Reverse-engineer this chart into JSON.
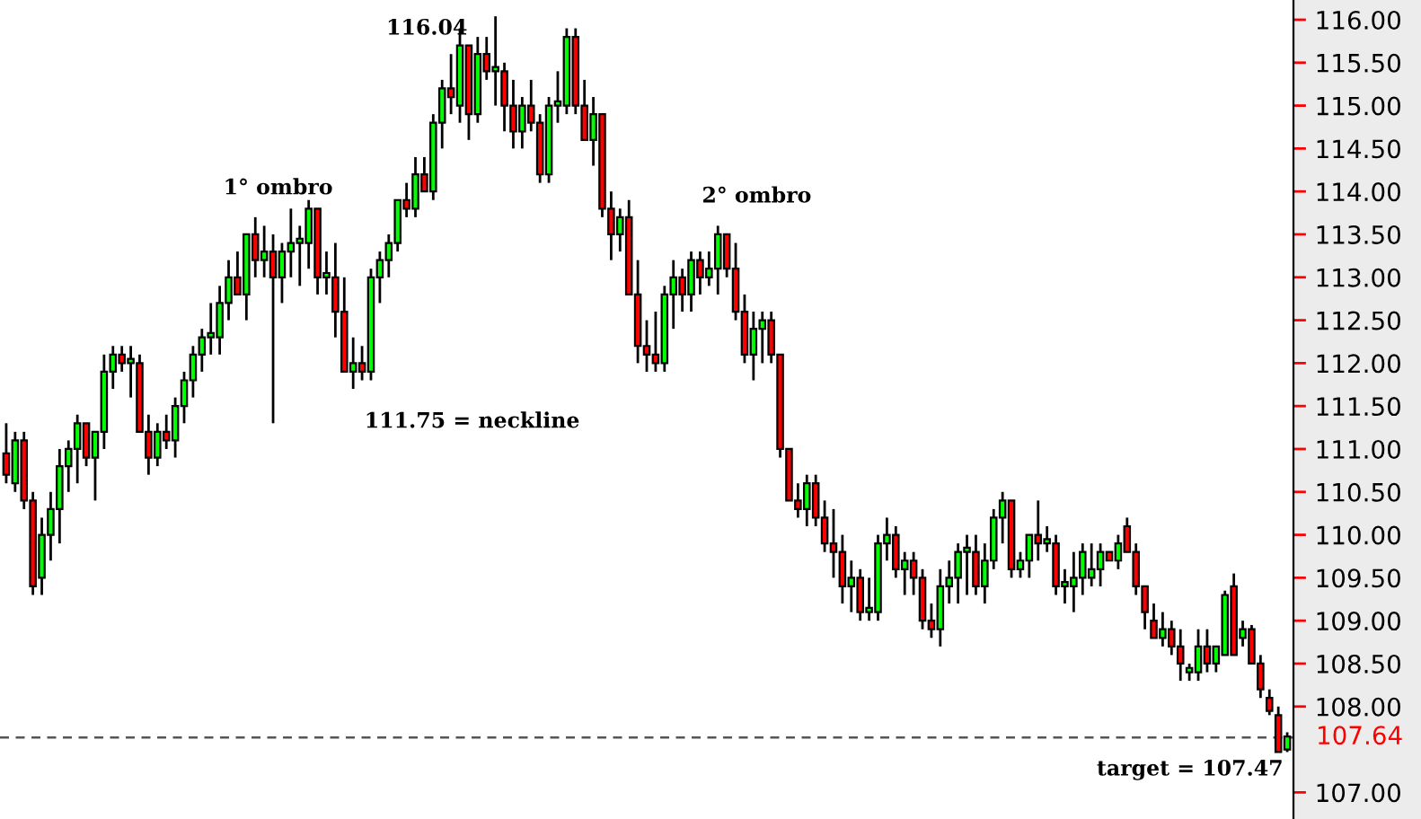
{
  "chart_data": {
    "type": "candlestick",
    "categories": [
      null,
      null,
      null,
      null,
      null,
      null,
      null,
      null,
      null,
      null,
      null,
      null,
      null,
      null,
      null,
      null,
      null,
      null,
      null,
      null,
      null,
      null,
      null,
      null,
      null,
      null,
      null,
      null,
      null,
      null,
      null,
      null,
      null,
      null,
      null,
      null,
      null,
      null,
      null,
      null,
      null,
      null,
      null,
      null,
      null,
      null,
      null,
      null,
      null,
      null,
      null,
      null,
      null,
      null,
      null,
      null,
      null,
      null,
      null,
      null,
      null,
      null,
      null,
      null,
      null,
      null,
      null,
      null,
      null,
      null,
      null,
      null,
      null,
      null,
      null,
      null,
      null,
      null,
      null,
      null,
      null,
      null,
      null,
      null,
      null,
      null,
      null,
      null,
      null,
      null,
      null,
      null,
      null,
      null,
      null,
      null,
      null,
      null,
      null,
      null,
      null,
      null,
      null,
      null,
      null,
      null,
      null,
      null,
      null,
      null,
      null,
      null,
      null,
      null,
      null,
      null,
      null,
      null,
      null,
      null,
      null,
      null,
      null,
      null,
      null,
      null,
      null,
      null,
      null,
      null,
      null,
      null,
      null,
      null,
      null,
      null,
      null,
      null,
      null,
      null,
      null,
      null,
      null,
      null,
      null
    ],
    "ohlc": [
      [
        110.95,
        111.3,
        110.6,
        110.7
      ],
      [
        110.6,
        111.2,
        110.5,
        111.1
      ],
      [
        111.1,
        111.2,
        110.3,
        110.4
      ],
      [
        110.4,
        110.5,
        109.3,
        109.4
      ],
      [
        109.5,
        110.2,
        109.3,
        110.0
      ],
      [
        110.0,
        110.5,
        109.7,
        110.3
      ],
      [
        110.3,
        111.0,
        109.9,
        110.8
      ],
      [
        110.8,
        111.1,
        110.5,
        111.0
      ],
      [
        111.0,
        111.4,
        110.6,
        111.3
      ],
      [
        111.3,
        111.3,
        110.8,
        110.9
      ],
      [
        110.9,
        111.2,
        110.4,
        111.2
      ],
      [
        111.2,
        112.1,
        111.0,
        111.9
      ],
      [
        111.9,
        112.2,
        111.7,
        112.1
      ],
      [
        112.1,
        112.2,
        111.9,
        112.0
      ],
      [
        112.0,
        112.2,
        111.6,
        112.05
      ],
      [
        112.0,
        112.1,
        111.2,
        111.2
      ],
      [
        111.2,
        111.4,
        110.7,
        110.9
      ],
      [
        110.9,
        111.3,
        110.8,
        111.2
      ],
      [
        111.2,
        111.4,
        111.0,
        111.1
      ],
      [
        111.1,
        111.6,
        110.9,
        111.5
      ],
      [
        111.5,
        111.9,
        111.3,
        111.8
      ],
      [
        111.8,
        112.2,
        111.6,
        112.1
      ],
      [
        112.1,
        112.4,
        111.9,
        112.3
      ],
      [
        112.3,
        112.7,
        112.1,
        112.35
      ],
      [
        112.3,
        112.9,
        112.1,
        112.7
      ],
      [
        112.7,
        113.2,
        112.5,
        113.0
      ],
      [
        113.0,
        113.3,
        112.8,
        112.8
      ],
      [
        112.8,
        113.5,
        112.5,
        113.5
      ],
      [
        113.5,
        113.7,
        113.0,
        113.2
      ],
      [
        113.2,
        113.6,
        113.0,
        113.3
      ],
      [
        113.3,
        113.5,
        111.3,
        113.0
      ],
      [
        113.0,
        113.4,
        112.7,
        113.3
      ],
      [
        113.3,
        113.8,
        113.0,
        113.4
      ],
      [
        113.4,
        113.6,
        112.9,
        113.45
      ],
      [
        113.4,
        113.9,
        113.1,
        113.8
      ],
      [
        113.8,
        113.8,
        112.8,
        113.0
      ],
      [
        113.0,
        113.3,
        112.8,
        113.05
      ],
      [
        113.0,
        113.4,
        112.3,
        112.6
      ],
      [
        112.6,
        113.0,
        111.9,
        111.9
      ],
      [
        111.9,
        112.3,
        111.7,
        112.0
      ],
      [
        112.0,
        112.2,
        111.8,
        111.9
      ],
      [
        111.9,
        113.1,
        111.8,
        113.0
      ],
      [
        113.0,
        113.3,
        112.7,
        113.2
      ],
      [
        113.2,
        113.5,
        113.0,
        113.4
      ],
      [
        113.4,
        113.9,
        113.3,
        113.9
      ],
      [
        113.9,
        114.1,
        113.7,
        113.8
      ],
      [
        113.8,
        114.4,
        113.7,
        114.2
      ],
      [
        114.2,
        114.4,
        114.0,
        114.0
      ],
      [
        114.0,
        114.9,
        113.9,
        114.8
      ],
      [
        114.8,
        115.3,
        114.5,
        115.2
      ],
      [
        115.2,
        115.6,
        114.9,
        115.1
      ],
      [
        115.0,
        115.9,
        114.8,
        115.7
      ],
      [
        115.7,
        115.7,
        114.6,
        114.9
      ],
      [
        114.9,
        115.8,
        114.8,
        115.6
      ],
      [
        115.6,
        115.8,
        115.3,
        115.4
      ],
      [
        115.4,
        116.04,
        115.0,
        115.45
      ],
      [
        115.4,
        115.5,
        114.7,
        115.0
      ],
      [
        115.0,
        115.3,
        114.5,
        114.7
      ],
      [
        114.7,
        115.1,
        114.5,
        115.0
      ],
      [
        115.0,
        115.3,
        114.7,
        114.8
      ],
      [
        114.8,
        114.9,
        114.1,
        114.2
      ],
      [
        114.2,
        115.1,
        114.1,
        115.0
      ],
      [
        115.0,
        115.4,
        114.8,
        115.05
      ],
      [
        115.0,
        115.9,
        114.9,
        115.8
      ],
      [
        115.8,
        115.9,
        114.9,
        115.0
      ],
      [
        115.0,
        115.3,
        114.6,
        114.6
      ],
      [
        114.6,
        115.1,
        114.3,
        114.9
      ],
      [
        114.9,
        114.9,
        113.7,
        113.8
      ],
      [
        113.8,
        114.0,
        113.2,
        113.5
      ],
      [
        113.5,
        113.8,
        113.3,
        113.7
      ],
      [
        113.7,
        113.9,
        112.8,
        112.8
      ],
      [
        112.8,
        113.2,
        112.0,
        112.2
      ],
      [
        112.2,
        112.5,
        111.9,
        112.1
      ],
      [
        112.1,
        112.6,
        111.9,
        112.0
      ],
      [
        112.0,
        112.9,
        111.9,
        112.8
      ],
      [
        112.8,
        113.2,
        112.4,
        113.0
      ],
      [
        113.0,
        113.1,
        112.6,
        112.8
      ],
      [
        112.8,
        113.3,
        112.6,
        113.2
      ],
      [
        113.2,
        113.3,
        112.8,
        113.0
      ],
      [
        113.0,
        113.3,
        112.9,
        113.1
      ],
      [
        113.1,
        113.6,
        112.8,
        113.5
      ],
      [
        113.5,
        113.5,
        113.0,
        113.1
      ],
      [
        113.1,
        113.4,
        112.5,
        112.6
      ],
      [
        112.6,
        112.8,
        112.0,
        112.1
      ],
      [
        112.1,
        112.6,
        111.8,
        112.4
      ],
      [
        112.4,
        112.6,
        112.0,
        112.5
      ],
      [
        112.5,
        112.6,
        112.0,
        112.1
      ],
      [
        112.1,
        112.1,
        110.9,
        111.0
      ],
      [
        111.0,
        111.0,
        110.4,
        110.4
      ],
      [
        110.4,
        110.6,
        110.2,
        110.3
      ],
      [
        110.3,
        110.7,
        110.1,
        110.6
      ],
      [
        110.6,
        110.7,
        110.1,
        110.2
      ],
      [
        110.2,
        110.4,
        109.8,
        109.9
      ],
      [
        109.9,
        110.3,
        109.5,
        109.8
      ],
      [
        109.8,
        110.0,
        109.2,
        109.4
      ],
      [
        109.4,
        109.7,
        109.1,
        109.5
      ],
      [
        109.5,
        109.6,
        109.0,
        109.1
      ],
      [
        109.1,
        109.5,
        109.0,
        109.15
      ],
      [
        109.1,
        110.0,
        109.0,
        109.9
      ],
      [
        109.9,
        110.2,
        109.7,
        110.0
      ],
      [
        110.0,
        110.1,
        109.5,
        109.6
      ],
      [
        109.6,
        109.8,
        109.3,
        109.7
      ],
      [
        109.7,
        109.8,
        109.3,
        109.5
      ],
      [
        109.5,
        109.6,
        108.9,
        109.0
      ],
      [
        109.0,
        109.2,
        108.8,
        108.9
      ],
      [
        108.9,
        109.6,
        108.7,
        109.4
      ],
      [
        109.4,
        109.7,
        109.2,
        109.5
      ],
      [
        109.5,
        109.9,
        109.2,
        109.8
      ],
      [
        109.8,
        110.0,
        109.3,
        109.85
      ],
      [
        109.8,
        110.0,
        109.3,
        109.4
      ],
      [
        109.4,
        109.9,
        109.2,
        109.7
      ],
      [
        109.7,
        110.3,
        109.6,
        110.2
      ],
      [
        110.2,
        110.5,
        109.9,
        110.4
      ],
      [
        110.4,
        110.4,
        109.5,
        109.6
      ],
      [
        109.6,
        109.8,
        109.5,
        109.7
      ],
      [
        109.7,
        110.0,
        109.5,
        110.0
      ],
      [
        110.0,
        110.4,
        109.7,
        109.9
      ],
      [
        109.9,
        110.1,
        109.8,
        109.95
      ],
      [
        109.9,
        110.0,
        109.3,
        109.4
      ],
      [
        109.4,
        109.6,
        109.2,
        109.45
      ],
      [
        109.4,
        109.8,
        109.1,
        109.5
      ],
      [
        109.5,
        109.9,
        109.3,
        109.8
      ],
      [
        109.5,
        109.9,
        109.4,
        109.6
      ],
      [
        109.6,
        109.9,
        109.4,
        109.8
      ],
      [
        109.8,
        109.8,
        109.7,
        109.7
      ],
      [
        109.7,
        110.0,
        109.6,
        109.9
      ],
      [
        110.1,
        110.2,
        109.8,
        109.8
      ],
      [
        109.8,
        109.9,
        109.3,
        109.4
      ],
      [
        109.4,
        109.4,
        108.9,
        109.1
      ],
      [
        109.0,
        109.2,
        108.8,
        108.8
      ],
      [
        108.8,
        109.1,
        108.7,
        108.9
      ],
      [
        108.9,
        109.0,
        108.6,
        108.7
      ],
      [
        108.7,
        108.9,
        108.3,
        108.5
      ],
      [
        108.4,
        108.5,
        108.3,
        108.45
      ],
      [
        108.4,
        108.9,
        108.3,
        108.7
      ],
      [
        108.7,
        108.9,
        108.4,
        108.5
      ],
      [
        108.5,
        108.7,
        108.4,
        108.7
      ],
      [
        108.6,
        109.35,
        108.6,
        109.3
      ],
      [
        109.4,
        109.55,
        108.6,
        108.6
      ],
      [
        108.8,
        109.0,
        108.7,
        108.9
      ],
      [
        108.9,
        108.95,
        108.5,
        108.5
      ],
      [
        108.5,
        108.6,
        108.1,
        108.2
      ],
      [
        108.1,
        108.2,
        107.9,
        107.95
      ],
      [
        107.9,
        108.0,
        107.47,
        107.47
      ],
      [
        107.5,
        107.7,
        107.47,
        107.65
      ]
    ],
    "colors": [
      "#ff0000",
      "#00ff00",
      "#ff0000",
      "#ff0000",
      "#00ff00",
      "#00ff00",
      "#00ff00",
      "#00ff00",
      "#00ff00",
      "#ff0000",
      "#00ff00",
      "#00ff00",
      "#00ff00",
      "#ff0000",
      "#00ff00",
      "#ff0000",
      "#ff0000",
      "#00ff00",
      "#ff0000",
      "#00ff00",
      "#00ff00",
      "#00ff00",
      "#00ff00",
      "#00ff00",
      "#00ff00",
      "#00ff00",
      "#ff0000",
      "#00ff00",
      "#ff0000",
      "#00ff00",
      "#ff0000",
      "#00ff00",
      "#00ff00",
      "#00ff00",
      "#00ff00",
      "#ff0000",
      "#00ff00",
      "#ff0000",
      "#ff0000",
      "#00ff00",
      "#ff0000",
      "#00ff00",
      "#00ff00",
      "#00ff00",
      "#00ff00",
      "#ff0000",
      "#00ff00",
      "#ff0000",
      "#00ff00",
      "#00ff00",
      "#ff0000",
      "#00ff00",
      "#ff0000",
      "#00ff00",
      "#ff0000",
      "#00ff00",
      "#ff0000",
      "#ff0000",
      "#00ff00",
      "#ff0000",
      "#ff0000",
      "#00ff00",
      "#00ff00",
      "#00ff00",
      "#ff0000",
      "#ff0000",
      "#00ff00",
      "#ff0000",
      "#ff0000",
      "#00ff00",
      "#ff0000",
      "#ff0000",
      "#ff0000",
      "#ff0000",
      "#00ff00",
      "#00ff00",
      "#ff0000",
      "#00ff00",
      "#ff0000",
      "#00ff00",
      "#00ff00",
      "#ff0000",
      "#ff0000",
      "#ff0000",
      "#00ff00",
      "#00ff00",
      "#ff0000",
      "#ff0000",
      "#ff0000",
      "#ff0000",
      "#00ff00",
      "#ff0000",
      "#ff0000",
      "#ff0000",
      "#ff0000",
      "#00ff00",
      "#ff0000",
      "#00ff00",
      "#00ff00",
      "#00ff00",
      "#ff0000",
      "#00ff00",
      "#ff0000",
      "#ff0000",
      "#ff0000",
      "#00ff00",
      "#00ff00",
      "#00ff00",
      "#00ff00",
      "#ff0000",
      "#00ff00",
      "#00ff00",
      "#00ff00",
      "#ff0000",
      "#00ff00",
      "#00ff00",
      "#ff0000",
      "#00ff00",
      "#ff0000",
      "#00ff00",
      "#00ff00",
      "#00ff00",
      "#00ff00",
      "#00ff00",
      "#ff0000",
      "#00ff00",
      "#ff0000",
      "#ff0000",
      "#ff0000",
      "#ff0000",
      "#00ff00",
      "#ff0000",
      "#ff0000",
      "#00ff00",
      "#00ff00",
      "#ff0000",
      "#00ff00",
      "#00ff00",
      "#ff0000",
      "#00ff00",
      "#ff0000",
      "#ff0000",
      "#ff0000",
      "#ff0000",
      "#00ff00"
    ],
    "ylim": [
      106.69,
      116.23
    ],
    "yticks": [
      {
        "value": 107,
        "label": "107.00"
      },
      {
        "value": 108,
        "label": "108.00"
      },
      {
        "value": 108.5,
        "label": "108.50"
      },
      {
        "value": 109,
        "label": "109.00"
      },
      {
        "value": 109.5,
        "label": "109.50"
      },
      {
        "value": 110,
        "label": "110.00"
      },
      {
        "value": 110.5,
        "label": "110.50"
      },
      {
        "value": 111,
        "label": "111.00"
      },
      {
        "value": 111.5,
        "label": "111.50"
      },
      {
        "value": 112,
        "label": "112.00"
      },
      {
        "value": 112.5,
        "label": "112.50"
      },
      {
        "value": 113,
        "label": "113.00"
      },
      {
        "value": 113.5,
        "label": "113.50"
      },
      {
        "value": 114,
        "label": "114.00"
      },
      {
        "value": 114.5,
        "label": "114.50"
      },
      {
        "value": 115,
        "label": "115.00"
      },
      {
        "value": 115.5,
        "label": "115.50"
      },
      {
        "value": 116,
        "label": "116.00"
      }
    ],
    "tick_labels": "y",
    "grid": false,
    "ref_lines": [
      {
        "axis": "y",
        "value": 107.64,
        "label": "107.64",
        "color": "#555555",
        "line_style": "dashed"
      }
    ],
    "annotations": [
      "116.04",
      "1° ombro",
      "111.75 = neckline",
      "2° ombro",
      "target = 107.47"
    ]
  }
}
